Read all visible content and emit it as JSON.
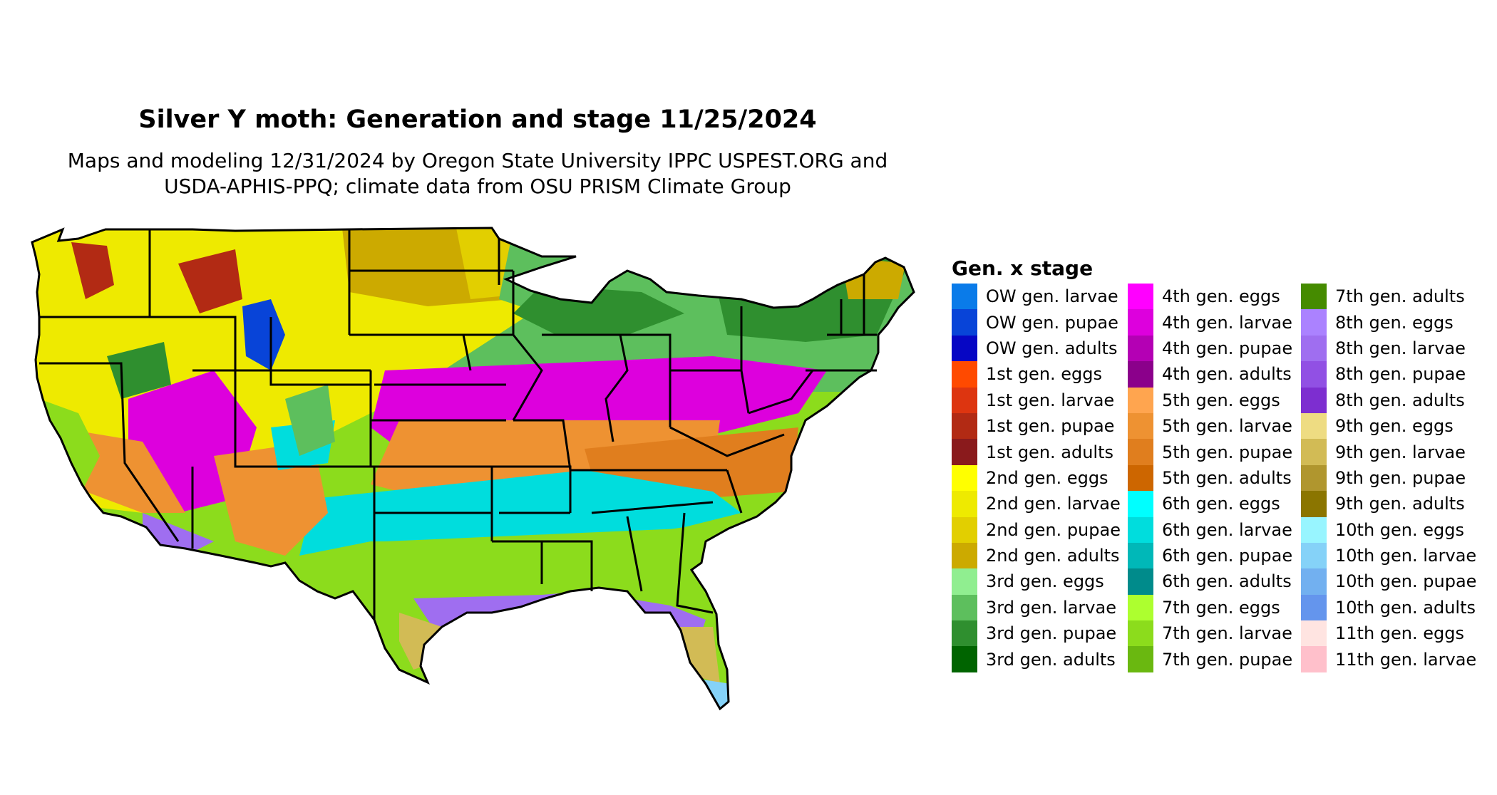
{
  "title": "Silver Y moth: Generation and stage 11/25/2024",
  "subtitle_line1": "Maps and modeling 12/31/2024 by Oregon State University IPPC USPEST.ORG and",
  "subtitle_line2": "USDA-APHIS-PPQ; climate data from OSU PRISM Climate Group",
  "legend": {
    "title": "Gen. x stage",
    "items": [
      {
        "label": "OW gen. larvae",
        "color": "#0a7be9"
      },
      {
        "label": "OW gen. pupae",
        "color": "#0844d8"
      },
      {
        "label": "OW gen. adults",
        "color": "#0606c4"
      },
      {
        "label": "1st gen. eggs",
        "color": "#ff4a00"
      },
      {
        "label": "1st gen. larvae",
        "color": "#dd3510"
      },
      {
        "label": "1st gen. pupae",
        "color": "#b22a14"
      },
      {
        "label": "1st gen. adults",
        "color": "#8a1a1c"
      },
      {
        "label": "2nd gen. eggs",
        "color": "#ffff00"
      },
      {
        "label": "2nd gen. larvae",
        "color": "#eeea00"
      },
      {
        "label": "2nd gen. pupae",
        "color": "#e2cf00"
      },
      {
        "label": "2nd gen. adults",
        "color": "#ccaa00"
      },
      {
        "label": "3rd gen. eggs",
        "color": "#90ee90"
      },
      {
        "label": "3rd gen. larvae",
        "color": "#5dbf5d"
      },
      {
        "label": "3rd gen. pupae",
        "color": "#2f8f2f"
      },
      {
        "label": "3rd gen. adults",
        "color": "#006400"
      },
      {
        "label": "4th gen. eggs",
        "color": "#ff00ff"
      },
      {
        "label": "4th gen. larvae",
        "color": "#dd00dd"
      },
      {
        "label": "4th gen. pupae",
        "color": "#b400b4"
      },
      {
        "label": "4th gen. adults",
        "color": "#8b008b"
      },
      {
        "label": "5th gen. eggs",
        "color": "#ffa54f"
      },
      {
        "label": "5th gen. larvae",
        "color": "#ee9232"
      },
      {
        "label": "5th gen. pupae",
        "color": "#e07e1e"
      },
      {
        "label": "5th gen. adults",
        "color": "#cd6600"
      },
      {
        "label": "6th gen. eggs",
        "color": "#00ffff"
      },
      {
        "label": "6th gen. larvae",
        "color": "#00dddd"
      },
      {
        "label": "6th gen. pupae",
        "color": "#00b8b8"
      },
      {
        "label": "6th gen. adults",
        "color": "#008b8b"
      },
      {
        "label": "7th gen. eggs",
        "color": "#adff2f"
      },
      {
        "label": "7th gen. larvae",
        "color": "#8cdc1c"
      },
      {
        "label": "7th gen. pupae",
        "color": "#6ab810"
      },
      {
        "label": "7th gen. adults",
        "color": "#458b00"
      },
      {
        "label": "8th gen. eggs",
        "color": "#ab82ff"
      },
      {
        "label": "8th gen. larvae",
        "color": "#9f6ef0"
      },
      {
        "label": "8th gen. pupae",
        "color": "#9150e4"
      },
      {
        "label": "8th gen. adults",
        "color": "#7d2ed0"
      },
      {
        "label": "9th gen. eggs",
        "color": "#eedc82"
      },
      {
        "label": "9th gen. larvae",
        "color": "#d2bb55"
      },
      {
        "label": "9th gen. pupae",
        "color": "#b0962e"
      },
      {
        "label": "9th gen. adults",
        "color": "#8b7500"
      },
      {
        "label": "10th gen. eggs",
        "color": "#98f5ff"
      },
      {
        "label": "10th gen. larvae",
        "color": "#85d2f8"
      },
      {
        "label": "10th gen. pupae",
        "color": "#72b0f0"
      },
      {
        "label": "10th gen. adults",
        "color": "#6495ed"
      },
      {
        "label": "11th gen. eggs",
        "color": "#ffe4e1"
      },
      {
        "label": "11th gen. larvae",
        "color": "#ffc0cb"
      }
    ]
  }
}
